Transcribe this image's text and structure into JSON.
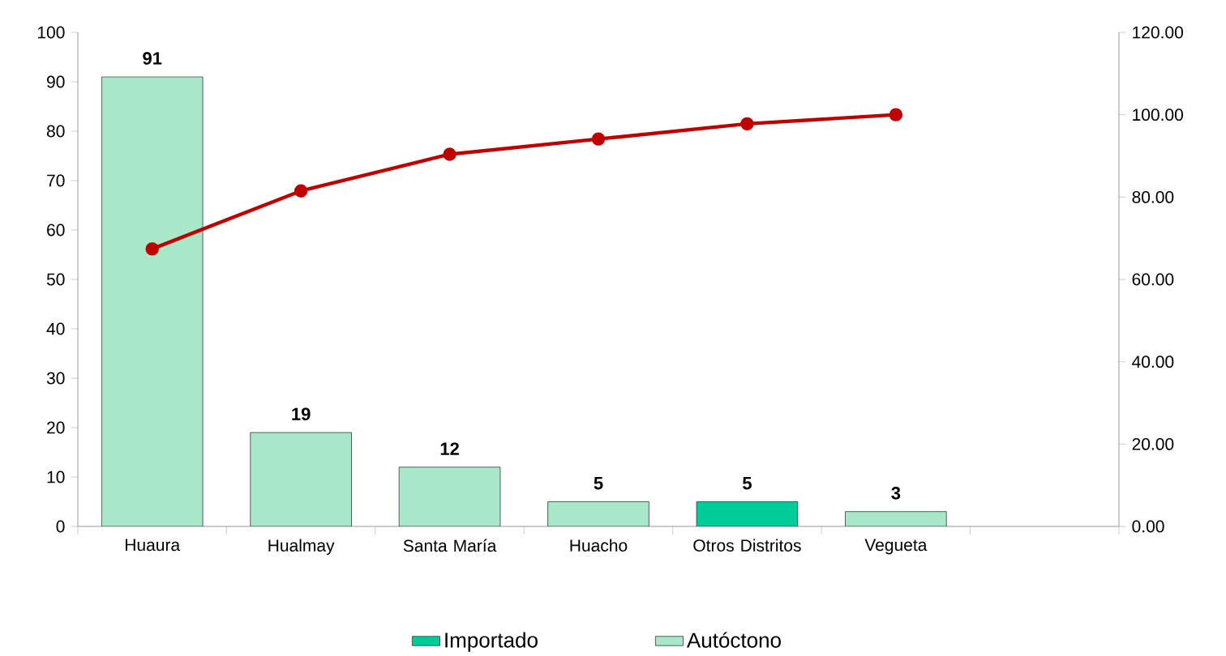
{
  "chart_data": {
    "type": "bar",
    "categories": [
      "Huaura",
      "Hualmay",
      "Santa María",
      "Huacho",
      "Otros Distritos",
      "Vegueta",
      null
    ],
    "series": [
      {
        "name": "Importado",
        "color": "#00cc99",
        "values": [
          null,
          null,
          null,
          null,
          5,
          null,
          null
        ],
        "value_labels": [
          null,
          null,
          null,
          null,
          "5",
          null,
          null
        ]
      },
      {
        "name": "Autóctono",
        "color": "#a8e8c8",
        "values": [
          91,
          19,
          12,
          5,
          null,
          3,
          null
        ],
        "value_labels": [
          "91",
          "19",
          "12",
          "5",
          null,
          "3",
          null
        ]
      },
      {
        "type": "line",
        "axis": "y2",
        "color": "#c00000",
        "marker": "circle",
        "values": [
          67.4,
          81.5,
          90.4,
          94.1,
          97.8,
          100,
          null
        ]
      }
    ],
    "ylim": [
      0,
      100
    ],
    "yticks": [
      0,
      10,
      20,
      30,
      40,
      50,
      60,
      70,
      80,
      90,
      100
    ],
    "y2lim": [
      0,
      120
    ],
    "y2ticks": [
      {
        "value": 0,
        "label": "0.00"
      },
      {
        "value": 20,
        "label": "20.00"
      },
      {
        "value": 40,
        "label": "40.00"
      },
      {
        "value": 60,
        "label": "60.00"
      },
      {
        "value": 80,
        "label": "80.00"
      },
      {
        "value": 100,
        "label": "100.00"
      },
      {
        "value": 120,
        "label": "120.00"
      }
    ],
    "legend": "bottom"
  }
}
